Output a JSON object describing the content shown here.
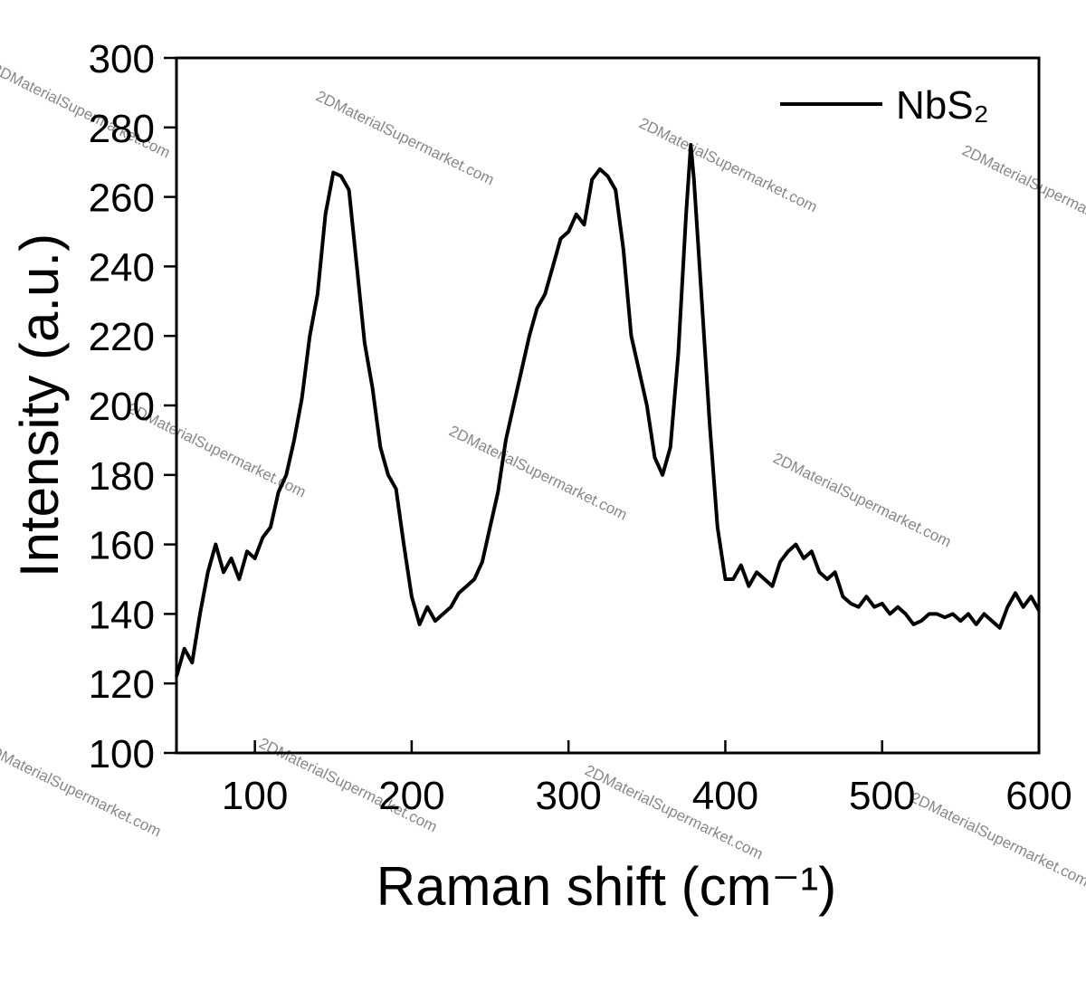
{
  "chart_data": {
    "type": "line",
    "x_label": "Raman shift (cm⁻¹)",
    "y_label": "Intensity (a.u.)",
    "watermark": "2DMaterialSupermarket.com",
    "legend": "top-right",
    "x": [
      50,
      55,
      60,
      65,
      70,
      75,
      80,
      85,
      90,
      95,
      100,
      105,
      110,
      115,
      120,
      125,
      130,
      135,
      140,
      145,
      150,
      155,
      160,
      165,
      170,
      175,
      180,
      185,
      190,
      195,
      200,
      205,
      210,
      215,
      220,
      225,
      230,
      235,
      240,
      245,
      250,
      255,
      260,
      265,
      270,
      275,
      280,
      285,
      290,
      295,
      300,
      305,
      310,
      315,
      320,
      325,
      330,
      335,
      340,
      345,
      350,
      355,
      360,
      365,
      370,
      375,
      378,
      380,
      385,
      390,
      395,
      400,
      405,
      410,
      415,
      420,
      425,
      430,
      435,
      440,
      445,
      450,
      455,
      460,
      465,
      470,
      475,
      480,
      485,
      490,
      495,
      500,
      505,
      510,
      515,
      520,
      525,
      530,
      535,
      540,
      545,
      550,
      555,
      560,
      565,
      570,
      575,
      580,
      585,
      590,
      595,
      600
    ],
    "series": [
      {
        "name": "NbS₂",
        "color": "#000000",
        "values": [
          122,
          130,
          126,
          140,
          152,
          160,
          152,
          156,
          150,
          158,
          156,
          162,
          165,
          175,
          180,
          190,
          202,
          220,
          232,
          255,
          267,
          266,
          262,
          240,
          218,
          205,
          188,
          180,
          176,
          160,
          145,
          137,
          142,
          138,
          140,
          142,
          146,
          148,
          150,
          155,
          165,
          175,
          190,
          200,
          210,
          220,
          228,
          232,
          240,
          248,
          250,
          255,
          252,
          265,
          268,
          266,
          262,
          245,
          220,
          210,
          200,
          185,
          180,
          188,
          215,
          255,
          275,
          265,
          230,
          195,
          165,
          150,
          150,
          154,
          148,
          152,
          150,
          148,
          155,
          158,
          160,
          156,
          158,
          152,
          150,
          152,
          145,
          143,
          142,
          145,
          142,
          143,
          140,
          142,
          140,
          137,
          138,
          140,
          140,
          139,
          140,
          138,
          140,
          137,
          140,
          138,
          136,
          142,
          146,
          142,
          145,
          141
        ]
      }
    ],
    "xlim": [
      50,
      600
    ],
    "xticks": [
      100,
      200,
      300,
      400,
      500,
      600
    ],
    "ylim": [
      100,
      300
    ],
    "yticks": [
      100,
      120,
      140,
      160,
      180,
      200,
      220,
      240,
      260,
      280,
      300
    ]
  }
}
